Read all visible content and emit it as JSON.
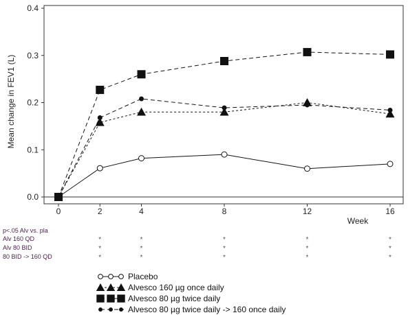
{
  "chart_data": {
    "type": "line",
    "title": "",
    "ylabel": "Mean change in FEV1 (L)",
    "xlabel": "Week",
    "ylim": [
      0,
      0.4
    ],
    "xlim": [
      0,
      16
    ],
    "x": [
      0,
      2,
      4,
      8,
      12,
      16
    ],
    "xticks": [
      "0",
      "2",
      "4",
      "8",
      "12",
      "16"
    ],
    "yticks": [
      "0.0",
      "0.1",
      "0.2",
      "0.3",
      "0.4"
    ],
    "grid": false,
    "series": [
      {
        "name": "Placebo",
        "marker": "open-circle",
        "line": "solid",
        "values": [
          0,
          0.061,
          0.082,
          0.09,
          0.06,
          0.07
        ]
      },
      {
        "name": "Alvesco 160 µg once daily",
        "marker": "triangle",
        "line": "dotted",
        "values": [
          0,
          0.158,
          0.18,
          0.18,
          0.2,
          0.176
        ]
      },
      {
        "name": "Alvesco 80 µg twice daily",
        "marker": "square",
        "line": "dashed",
        "values": [
          0,
          0.227,
          0.26,
          0.288,
          0.307,
          0.302
        ]
      },
      {
        "name": "Alvesco 80 µg twice daily -> 160 once daily",
        "marker": "filled-circle",
        "line": "dashed",
        "values": [
          0,
          0.168,
          0.208,
          0.189,
          0.195,
          0.184
        ]
      }
    ],
    "significance": {
      "header": "p<.05 Alv vs. pla",
      "rows": [
        {
          "label": "Alv 160 QD",
          "marks": [
            "*",
            "*",
            "*",
            "*",
            "*"
          ]
        },
        {
          "label": "Alv 80 BID",
          "marks": [
            "*",
            "*",
            "*",
            "*",
            "*"
          ]
        },
        {
          "label": "80 BID -> 160 QD",
          "marks": [
            "*",
            "*",
            "*",
            "*",
            "*"
          ]
        }
      ],
      "weeks": [
        2,
        4,
        8,
        12,
        16
      ]
    },
    "legend_position": "bottom-left"
  }
}
